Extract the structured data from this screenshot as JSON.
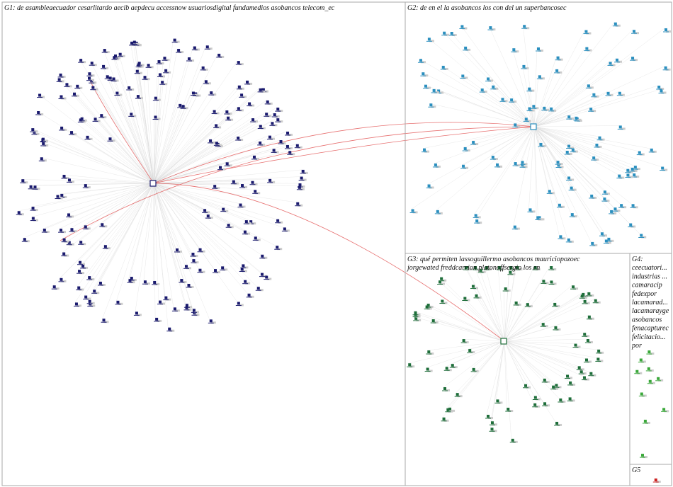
{
  "groups": [
    {
      "id": "G1",
      "label_lines": [
        "G1: de asambleaecuador cesarlitardo aecib aepdecu accessnow usuariosdigital fundamedios asobancos telecom_ec"
      ]
    },
    {
      "id": "G2",
      "label_lines": [
        "G2: de en el la asobancos los con del un superbancosec"
      ]
    },
    {
      "id": "G3",
      "label_lines": [
        "G3: qué permiten lassoguillermo asobancos mauriciopozoec",
        "jorgewated freddcarrion platonoffsergio los en"
      ]
    },
    {
      "id": "G4",
      "label_lines": [
        "G4:",
        "ceecuatori...",
        "industrias ...",
        "camaracip",
        "fedexpor",
        "lacamarad...",
        "lacamarayge",
        "asobancos",
        "fenacapturec",
        "felicitacio...",
        "por"
      ]
    },
    {
      "id": "G5",
      "label_lines": [
        "G5"
      ]
    }
  ]
}
